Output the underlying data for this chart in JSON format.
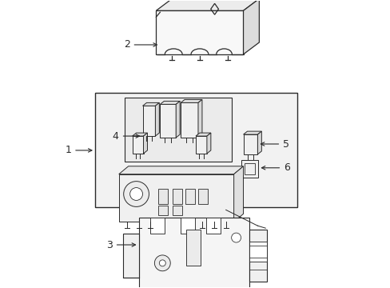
{
  "background_color": "#ffffff",
  "line_color": "#2a2a2a",
  "fill_white": "#ffffff",
  "fill_light": "#f5f5f5",
  "fill_mid": "#e8e8e8",
  "figsize": [
    4.89,
    3.6
  ],
  "dpi": 100
}
